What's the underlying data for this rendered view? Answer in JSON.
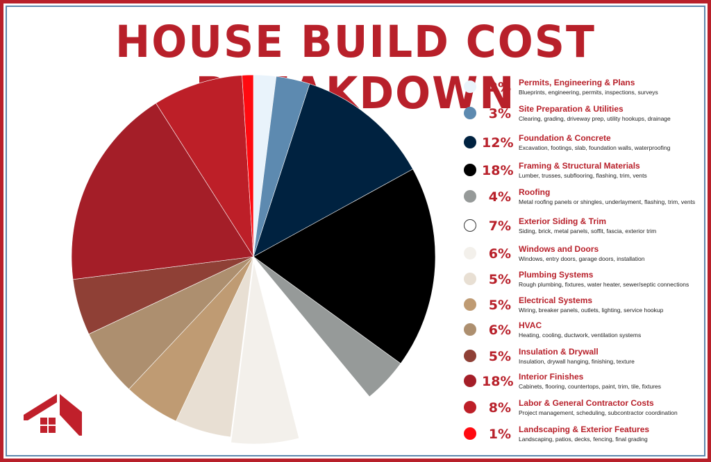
{
  "title": "HOUSE BUILD COST BREAKDOWN",
  "chart_data": {
    "type": "pie",
    "title": "HOUSE BUILD COST BREAKDOWN",
    "legend_position": "right",
    "slices": [
      {
        "label": "Permits, Engineering & Plans",
        "value": 2,
        "display": "2%",
        "color": "#e9f3fb",
        "description": "Blueprints, engineering, permits, inspections, surveys"
      },
      {
        "label": "Site Preparation & Utilities",
        "value": 3,
        "display": "3%",
        "color": "#5d8ab0",
        "description": "Clearing, grading, driveway prep, utility hookups, drainage"
      },
      {
        "label": "Foundation & Concrete",
        "value": 12,
        "display": "12%",
        "color": "#002240",
        "description": "Excavation, footings, slab, foundation walls, waterproofing"
      },
      {
        "label": "Framing & Structural Materials",
        "value": 18,
        "display": "18%",
        "color": "#000000",
        "description": "Lumber, trusses, subflooring, flashing, trim, vents"
      },
      {
        "label": "Roofing",
        "value": 4,
        "display": "4%",
        "color": "#969a99",
        "description": "Metal roofing panels or shingles, underlayment, flashing, trim, vents"
      },
      {
        "label": "Exterior Siding & Trim",
        "value": 7,
        "display": "7%",
        "color": "#ffffff",
        "description": "Siding, brick, metal panels, soffit, fascia, exterior trim"
      },
      {
        "label": "Windows and Doors",
        "value": 6,
        "display": "6%",
        "color": "#f3f0eb",
        "description": "Windows, entry doors, garage doors, installation"
      },
      {
        "label": "Plumbing Systems",
        "value": 5,
        "display": "5%",
        "color": "#e8dfd3",
        "description": "Rough plumbing, fixtures, water heater, sewer/septic connections"
      },
      {
        "label": "Electrical Systems",
        "value": 5,
        "display": "5%",
        "color": "#bf9b73",
        "description": "Wiring, breaker panels, outlets, lighting, service hookup"
      },
      {
        "label": "HVAC",
        "value": 6,
        "display": "6%",
        "color": "#ad8f6f",
        "description": "Heating, cooling, ductwork, ventilation systems"
      },
      {
        "label": "Insulation & Drywall",
        "value": 5,
        "display": "5%",
        "color": "#8f4036",
        "description": "Insulation, drywall hanging, finishing, texture"
      },
      {
        "label": "Interior Finishes",
        "value": 18,
        "display": "18%",
        "color": "#a41e28",
        "description": "Cabinets, flooring, countertops, paint, trim, tile, fixtures"
      },
      {
        "label": "Labor & General Contractor Costs",
        "value": 8,
        "display": "8%",
        "color": "#bd1f28",
        "description": "Project management, scheduling, subcontractor coordination"
      },
      {
        "label": "Landscaping & Exterior Features",
        "value": 1,
        "display": "1%",
        "color": "#ff0a10",
        "description": "Landscaping, patios, decks, fencing, final grading"
      }
    ]
  },
  "colors": {
    "accent": "#b8202a",
    "frame_inner": "#5c87ad"
  },
  "logo": {
    "icon": "house-logo-icon"
  }
}
